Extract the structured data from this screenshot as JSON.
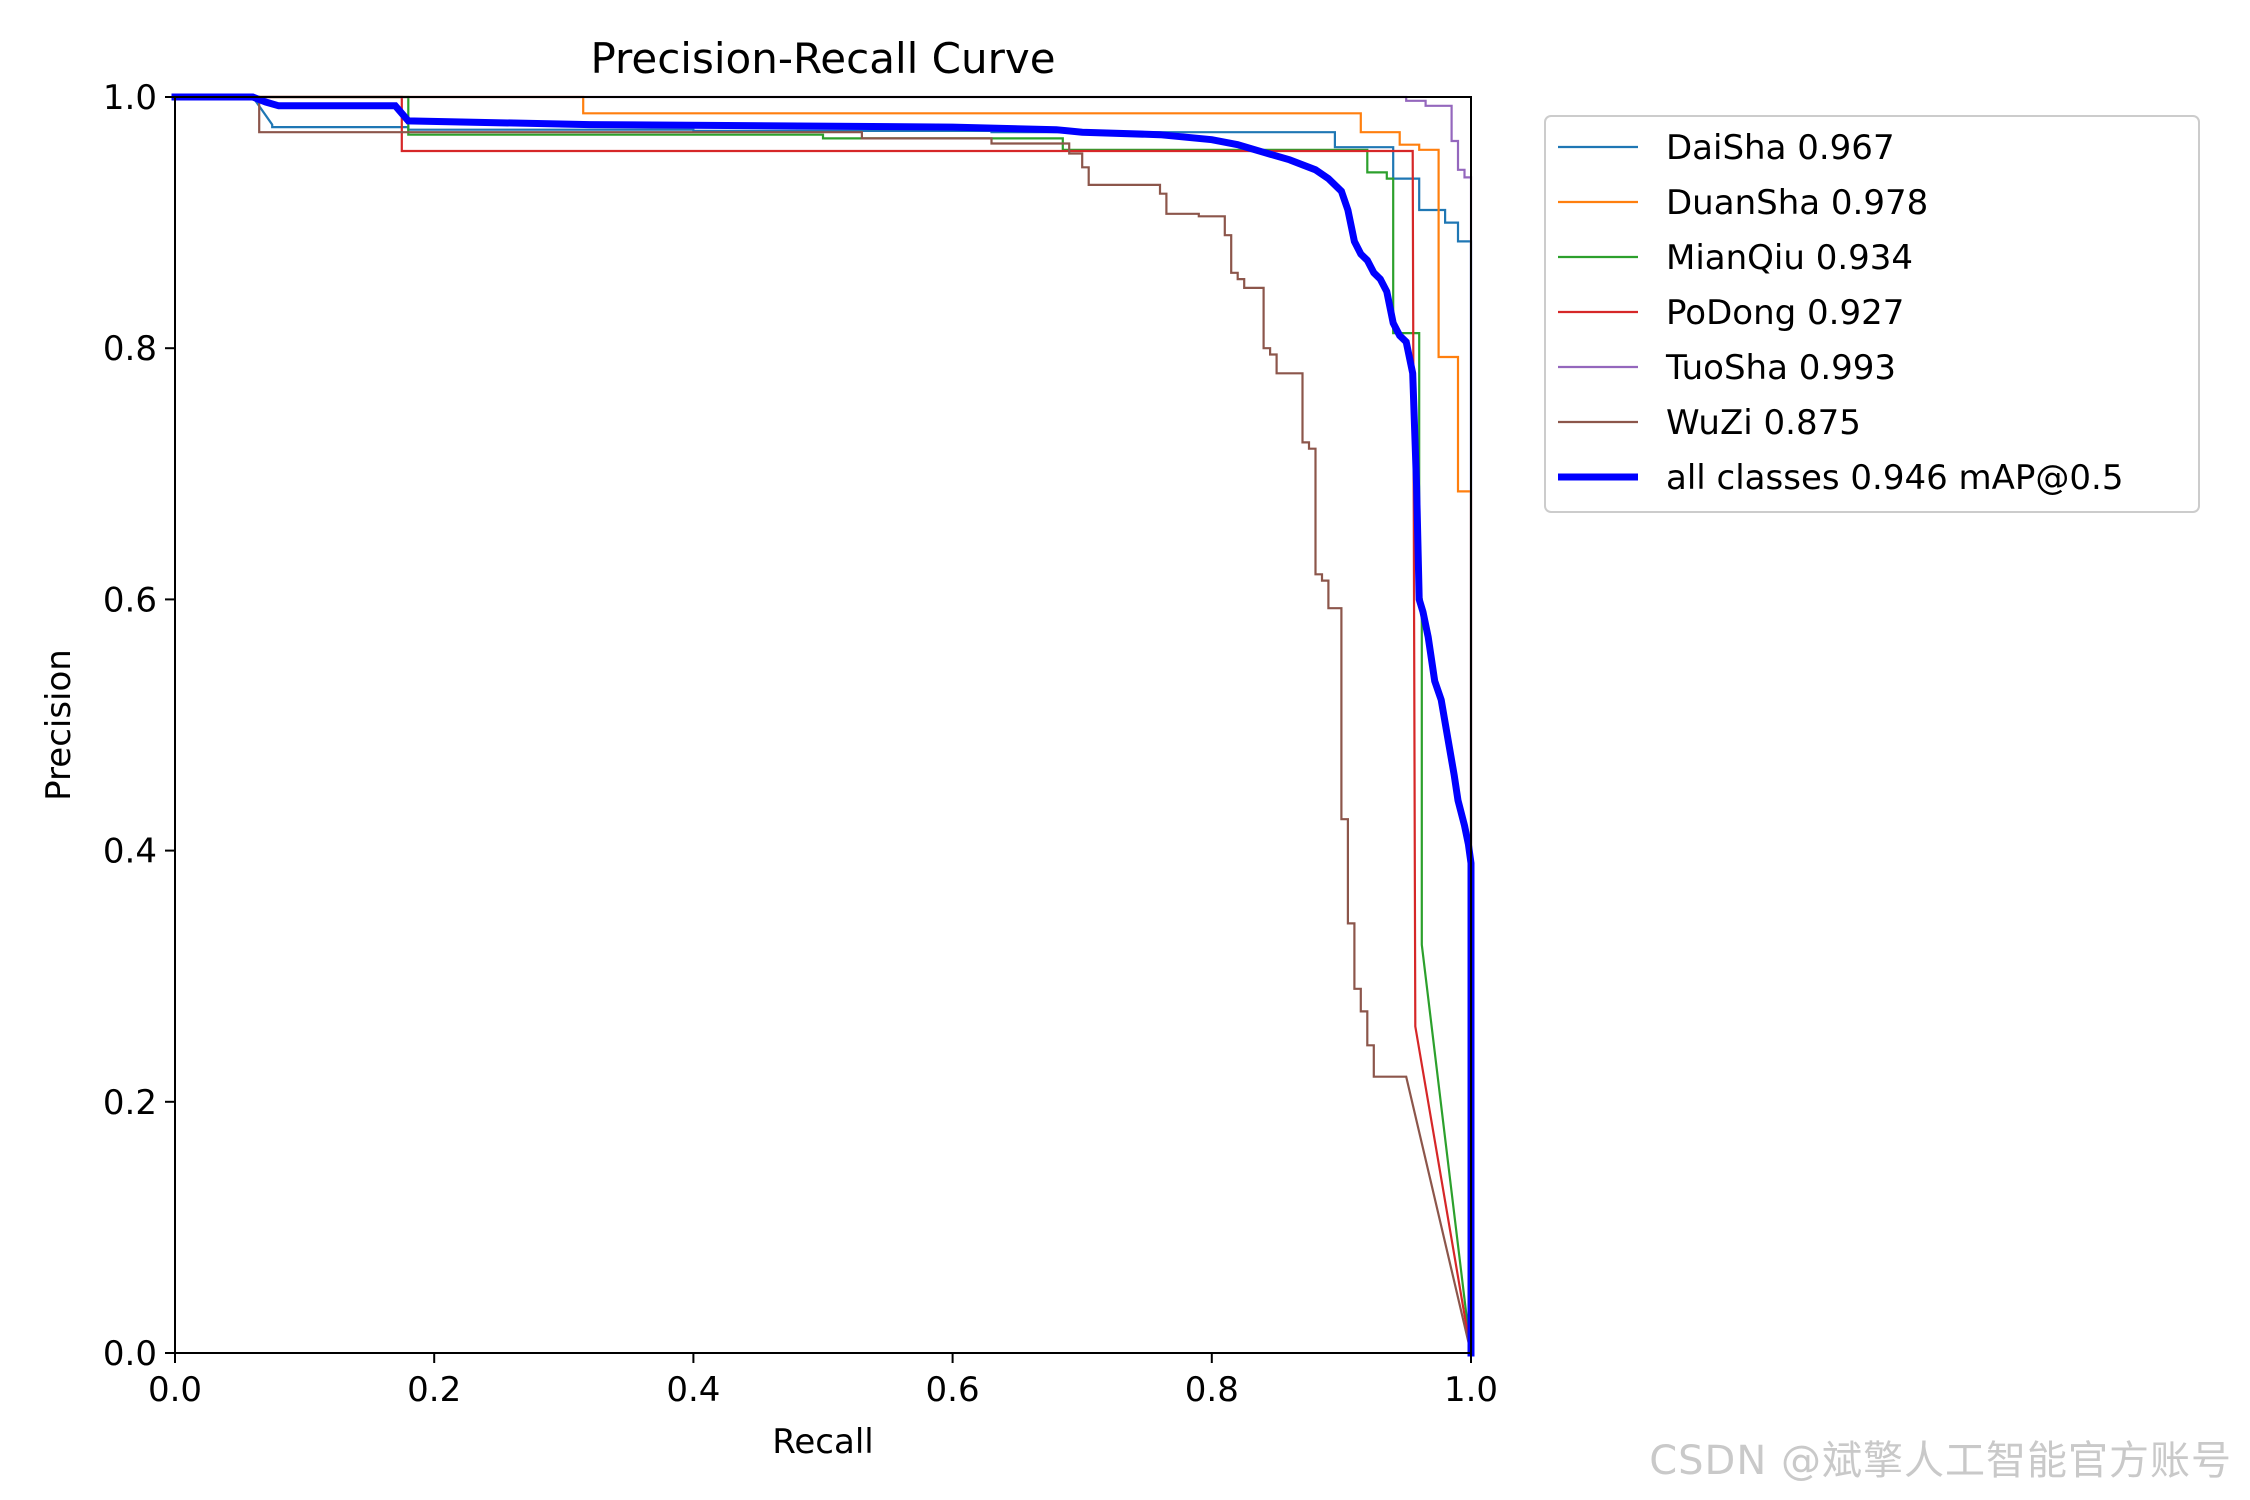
{
  "chart_data": {
    "type": "line",
    "title": "Precision-Recall Curve",
    "xlabel": "Recall",
    "ylabel": "Precision",
    "xlim": [
      0,
      1
    ],
    "ylim": [
      0,
      1
    ],
    "xticks": [
      "0.0",
      "0.2",
      "0.4",
      "0.6",
      "0.8",
      "1.0"
    ],
    "yticks": [
      "0.0",
      "0.2",
      "0.4",
      "0.6",
      "0.8",
      "1.0"
    ],
    "legend_position": "outside-top-right",
    "series": [
      {
        "name": "DaiSha",
        "label": "DaiSha 0.967",
        "color": "#1f77b4",
        "width": 2.2,
        "x": [
          0,
          0.06,
          0.075,
          0.075,
          0.18,
          0.18,
          0.4,
          0.4,
          0.63,
          0.63,
          0.895,
          0.895,
          0.94,
          0.94,
          0.96,
          0.96,
          0.98,
          0.98,
          0.99,
          0.99,
          1.0,
          1.0,
          1.0
        ],
        "y": [
          1,
          1,
          0.978,
          0.976,
          0.976,
          0.974,
          0.974,
          0.973,
          0.973,
          0.972,
          0.972,
          0.96,
          0.96,
          0.935,
          0.935,
          0.91,
          0.91,
          0.9,
          0.9,
          0.885,
          0.885,
          0.716,
          0
        ]
      },
      {
        "name": "DuanSha",
        "label": "DuanSha 0.978",
        "color": "#ff7f0e",
        "width": 2.2,
        "x": [
          0,
          0.315,
          0.315,
          0.915,
          0.915,
          0.945,
          0.945,
          0.96,
          0.96,
          0.975,
          0.975,
          0.99,
          0.99,
          0.995,
          0.995,
          1.0,
          1.0
        ],
        "y": [
          1,
          1,
          0.987,
          0.987,
          0.972,
          0.972,
          0.962,
          0.962,
          0.958,
          0.958,
          0.793,
          0.793,
          0.686,
          0.686,
          0.686,
          0.686,
          0
        ]
      },
      {
        "name": "MianQiu",
        "label": "MianQiu 0.934",
        "color": "#2ca02c",
        "width": 2.2,
        "x": [
          0,
          0.18,
          0.18,
          0.5,
          0.5,
          0.685,
          0.685,
          0.92,
          0.92,
          0.935,
          0.935,
          0.94,
          0.94,
          0.96,
          0.96,
          0.962,
          0.962,
          1.0
        ],
        "y": [
          1,
          1,
          0.97,
          0.97,
          0.967,
          0.967,
          0.958,
          0.958,
          0.94,
          0.94,
          0.935,
          0.935,
          0.812,
          0.812,
          0.6,
          0.6,
          0.325,
          0
        ]
      },
      {
        "name": "PoDong",
        "label": "PoDong 0.927",
        "color": "#d62728",
        "width": 2.2,
        "x": [
          0,
          0.175,
          0.175,
          0.5,
          0.5,
          0.7,
          0.7,
          0.9,
          0.9,
          0.955,
          0.955,
          0.957,
          0.957,
          1.0
        ],
        "y": [
          1,
          1,
          0.957,
          0.957,
          0.957,
          0.957,
          0.957,
          0.957,
          0.957,
          0.957,
          0.957,
          0.26,
          0.26,
          0
        ]
      },
      {
        "name": "TuoSha",
        "label": "TuoSha 0.993",
        "color": "#9467bd",
        "width": 2.2,
        "x": [
          0,
          0.95,
          0.95,
          0.965,
          0.965,
          0.985,
          0.985,
          0.99,
          0.99,
          0.995,
          0.995,
          1.0,
          1.0
        ],
        "y": [
          1,
          1,
          0.997,
          0.997,
          0.993,
          0.993,
          0.965,
          0.965,
          0.942,
          0.942,
          0.936,
          0.936,
          0
        ]
      },
      {
        "name": "WuZi",
        "label": "WuZi 0.875",
        "color": "#8c564b",
        "width": 2.2,
        "x": [
          0,
          0.065,
          0.065,
          0.53,
          0.53,
          0.63,
          0.63,
          0.69,
          0.69,
          0.7,
          0.7,
          0.705,
          0.705,
          0.76,
          0.76,
          0.765,
          0.765,
          0.79,
          0.79,
          0.81,
          0.81,
          0.815,
          0.815,
          0.82,
          0.82,
          0.825,
          0.825,
          0.84,
          0.84,
          0.845,
          0.845,
          0.85,
          0.85,
          0.87,
          0.87,
          0.875,
          0.875,
          0.88,
          0.88,
          0.885,
          0.885,
          0.89,
          0.89,
          0.9,
          0.9,
          0.905,
          0.905,
          0.91,
          0.91,
          0.915,
          0.915,
          0.92,
          0.92,
          0.925,
          0.925,
          0.93,
          0.93,
          0.935,
          0.935,
          0.94,
          0.94,
          0.95,
          1.0
        ],
        "y": [
          1,
          1,
          0.972,
          0.972,
          0.967,
          0.967,
          0.963,
          0.963,
          0.955,
          0.955,
          0.944,
          0.944,
          0.93,
          0.93,
          0.923,
          0.923,
          0.907,
          0.907,
          0.905,
          0.905,
          0.89,
          0.89,
          0.86,
          0.86,
          0.855,
          0.855,
          0.848,
          0.848,
          0.8,
          0.8,
          0.795,
          0.795,
          0.78,
          0.78,
          0.725,
          0.725,
          0.72,
          0.72,
          0.62,
          0.62,
          0.615,
          0.615,
          0.593,
          0.593,
          0.425,
          0.425,
          0.342,
          0.342,
          0.29,
          0.29,
          0.272,
          0.272,
          0.245,
          0.245,
          0.22,
          0.22,
          0.22,
          0.22,
          0.22,
          0.22,
          0.22,
          0.22,
          0
        ]
      },
      {
        "name": "all classes",
        "label": "all classes 0.946 mAP@0.5",
        "color": "#0000ff",
        "width": 7,
        "x": [
          0,
          0.06,
          0.07,
          0.08,
          0.17,
          0.18,
          0.32,
          0.6,
          0.68,
          0.7,
          0.76,
          0.8,
          0.82,
          0.84,
          0.86,
          0.87,
          0.88,
          0.89,
          0.9,
          0.905,
          0.91,
          0.915,
          0.92,
          0.925,
          0.93,
          0.935,
          0.94,
          0.945,
          0.95,
          0.955,
          0.958,
          0.96,
          0.963,
          0.967,
          0.972,
          0.977,
          0.982,
          0.987,
          0.99,
          0.995,
          0.998,
          1.0,
          1.0
        ],
        "y": [
          1,
          1,
          0.996,
          0.993,
          0.993,
          0.981,
          0.978,
          0.976,
          0.974,
          0.972,
          0.97,
          0.966,
          0.962,
          0.956,
          0.95,
          0.946,
          0.942,
          0.935,
          0.925,
          0.91,
          0.885,
          0.875,
          0.87,
          0.86,
          0.855,
          0.845,
          0.82,
          0.81,
          0.805,
          0.78,
          0.69,
          0.6,
          0.59,
          0.57,
          0.535,
          0.52,
          0.49,
          0.46,
          0.44,
          0.42,
          0.405,
          0.39,
          0
        ]
      }
    ]
  },
  "watermark": "CSDN @斌擎人工智能官方账号"
}
